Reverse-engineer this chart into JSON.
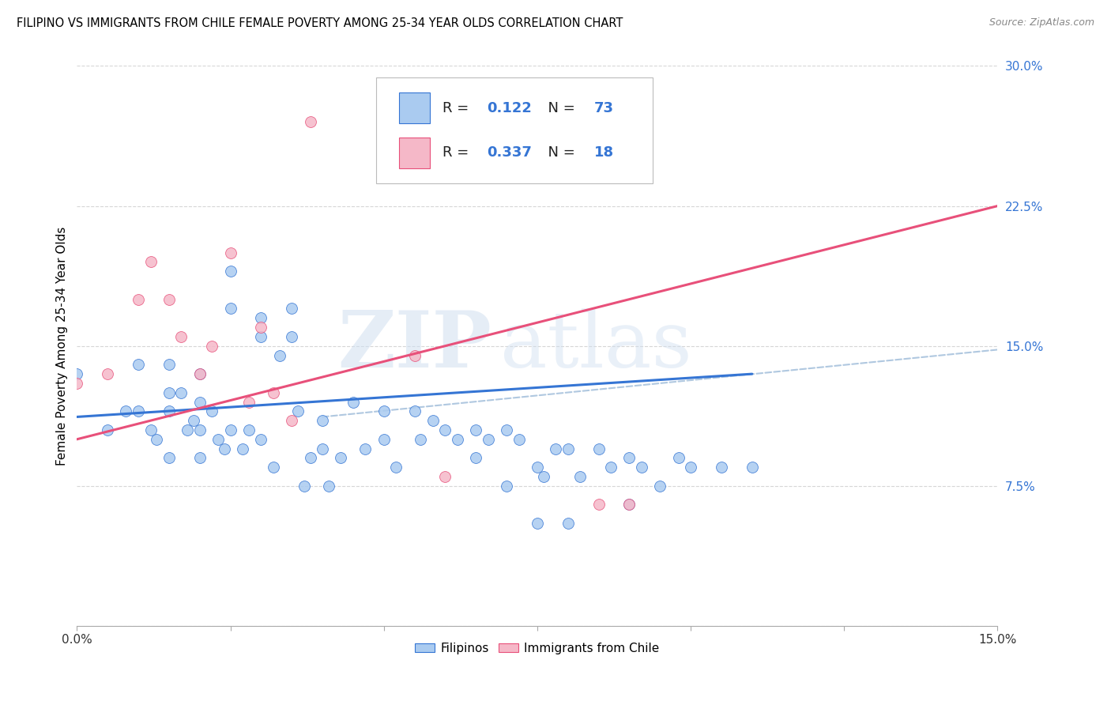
{
  "title": "FILIPINO VS IMMIGRANTS FROM CHILE FEMALE POVERTY AMONG 25-34 YEAR OLDS CORRELATION CHART",
  "source": "Source: ZipAtlas.com",
  "ylabel": "Female Poverty Among 25-34 Year Olds",
  "xlim": [
    0.0,
    0.15
  ],
  "ylim": [
    0.0,
    0.3
  ],
  "xticks": [
    0.0,
    0.05,
    0.1,
    0.15
  ],
  "xtick_labels": [
    "0.0%",
    "",
    "",
    "15.0%"
  ],
  "yticks": [
    0.0,
    0.075,
    0.15,
    0.225,
    0.3
  ],
  "ytick_labels": [
    "",
    "7.5%",
    "15.0%",
    "22.5%",
    "30.0%"
  ],
  "filipino_color": "#aacbf0",
  "chile_color": "#f5b8c8",
  "trend_blue": "#3575d4",
  "trend_pink": "#e8507a",
  "trend_dashed_color": "#b0c8e0",
  "R_filipino": 0.122,
  "N_filipino": 73,
  "R_chile": 0.337,
  "N_chile": 18,
  "watermark_zip": "ZIP",
  "watermark_atlas": "atlas",
  "filipinos_scatter_x": [
    0.0,
    0.005,
    0.008,
    0.01,
    0.01,
    0.012,
    0.013,
    0.015,
    0.015,
    0.015,
    0.015,
    0.017,
    0.018,
    0.019,
    0.02,
    0.02,
    0.02,
    0.02,
    0.022,
    0.023,
    0.024,
    0.025,
    0.025,
    0.025,
    0.027,
    0.028,
    0.03,
    0.03,
    0.03,
    0.032,
    0.033,
    0.035,
    0.035,
    0.036,
    0.037,
    0.038,
    0.04,
    0.04,
    0.041,
    0.043,
    0.045,
    0.047,
    0.05,
    0.05,
    0.052,
    0.055,
    0.056,
    0.058,
    0.06,
    0.062,
    0.065,
    0.065,
    0.067,
    0.07,
    0.07,
    0.072,
    0.075,
    0.076,
    0.078,
    0.08,
    0.082,
    0.085,
    0.087,
    0.09,
    0.092,
    0.095,
    0.098,
    0.1,
    0.105,
    0.11,
    0.075,
    0.08,
    0.09
  ],
  "filipinos_scatter_y": [
    0.135,
    0.105,
    0.115,
    0.14,
    0.115,
    0.105,
    0.1,
    0.14,
    0.125,
    0.115,
    0.09,
    0.125,
    0.105,
    0.11,
    0.135,
    0.12,
    0.105,
    0.09,
    0.115,
    0.1,
    0.095,
    0.19,
    0.17,
    0.105,
    0.095,
    0.105,
    0.165,
    0.155,
    0.1,
    0.085,
    0.145,
    0.17,
    0.155,
    0.115,
    0.075,
    0.09,
    0.11,
    0.095,
    0.075,
    0.09,
    0.12,
    0.095,
    0.115,
    0.1,
    0.085,
    0.115,
    0.1,
    0.11,
    0.105,
    0.1,
    0.105,
    0.09,
    0.1,
    0.105,
    0.075,
    0.1,
    0.085,
    0.08,
    0.095,
    0.095,
    0.08,
    0.095,
    0.085,
    0.09,
    0.085,
    0.075,
    0.09,
    0.085,
    0.085,
    0.085,
    0.055,
    0.055,
    0.065
  ],
  "chile_scatter_x": [
    0.0,
    0.005,
    0.01,
    0.012,
    0.015,
    0.017,
    0.02,
    0.022,
    0.025,
    0.028,
    0.03,
    0.032,
    0.035,
    0.038,
    0.055,
    0.06,
    0.085,
    0.09
  ],
  "chile_scatter_y": [
    0.13,
    0.135,
    0.175,
    0.195,
    0.175,
    0.155,
    0.135,
    0.15,
    0.2,
    0.12,
    0.16,
    0.125,
    0.11,
    0.27,
    0.145,
    0.08,
    0.065,
    0.065
  ],
  "blue_trend_x": [
    0.0,
    0.11
  ],
  "blue_trend_y": [
    0.112,
    0.135
  ],
  "pink_trend_x": [
    0.0,
    0.15
  ],
  "pink_trend_y": [
    0.1,
    0.225
  ],
  "dashed_trend_x": [
    0.04,
    0.15
  ],
  "dashed_trend_y": [
    0.112,
    0.148
  ],
  "legend_R_label_color": "#222222",
  "legend_N_value_color": "#3575d4"
}
